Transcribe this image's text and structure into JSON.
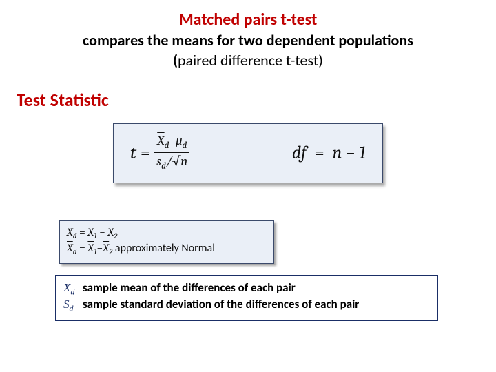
{
  "title": {
    "main": "Matched pairs t-test",
    "sub1": "compares the means for two dependent populations",
    "sub2_open": "(",
    "sub2_text": "paired difference t-test)"
  },
  "section_heading": "Test Statistic",
  "formula": {
    "t_sym": "t",
    "eq": "=",
    "num_xbar": "X",
    "num_xbar_sub": "d",
    "minus": "−",
    "num_mu": "μ",
    "num_mu_sub": "d",
    "den_s": "s",
    "den_s_sub": "d",
    "slash": "/",
    "den_sqrt_arg": "n",
    "df_label": "df",
    "df_eq": "=",
    "df_rhs": "n − 1"
  },
  "defs": {
    "line1_lhs": "X",
    "line1_lhs_sub": "d",
    "line1_eq": " = ",
    "line1_x1": "X",
    "line1_x1_sub": "1",
    "line1_minus": " − ",
    "line1_x2": "X",
    "line1_x2_sub": "2",
    "line2_lhs": "X",
    "line2_lhs_sub": "d",
    "line2_eq": " = ",
    "line2_x1": "X",
    "line2_x1_sub": "1",
    "line2_minus": "−",
    "line2_x2": "X",
    "line2_x2_sub": "2",
    "line2_tail": " approximately Normal"
  },
  "legend": {
    "row1_sym": "X",
    "row1_sub": "d",
    "row1_text": "  sample mean of the differences of each pair",
    "row2_sym": "S",
    "row2_sub": "d",
    "row2_text": "  sample standard deviation of the differences of each pair"
  },
  "colors": {
    "accent_red": "#c00000",
    "box_bg": "#eaeff7",
    "box_border": "#3b4a6b",
    "legend_border": "#1a2e66",
    "legend_sym": "#1a2e66",
    "page_bg": "#ffffff"
  }
}
